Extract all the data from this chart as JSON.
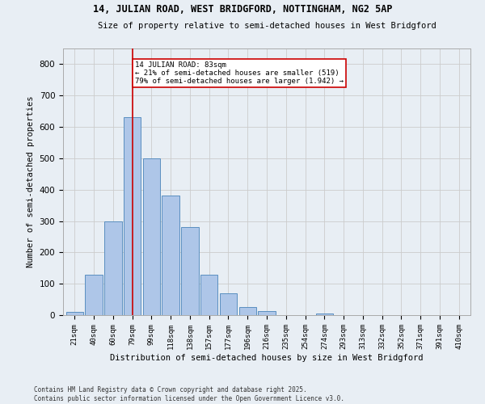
{
  "title1": "14, JULIAN ROAD, WEST BRIDGFORD, NOTTINGHAM, NG2 5AP",
  "title2": "Size of property relative to semi-detached houses in West Bridgford",
  "xlabel": "Distribution of semi-detached houses by size in West Bridgford",
  "ylabel": "Number of semi-detached properties",
  "categories": [
    "21sqm",
    "40sqm",
    "60sqm",
    "79sqm",
    "99sqm",
    "118sqm",
    "138sqm",
    "157sqm",
    "177sqm",
    "196sqm",
    "216sqm",
    "235sqm",
    "254sqm",
    "274sqm",
    "293sqm",
    "313sqm",
    "332sqm",
    "352sqm",
    "371sqm",
    "391sqm",
    "410sqm"
  ],
  "values": [
    10,
    130,
    300,
    630,
    500,
    380,
    280,
    130,
    70,
    25,
    12,
    0,
    0,
    5,
    0,
    0,
    0,
    0,
    0,
    0,
    0
  ],
  "bar_color": "#aec6e8",
  "bar_edge_color": "#5a8fc0",
  "property_size_label": "14 JULIAN ROAD: 83sqm",
  "pct_smaller": 21,
  "pct_larger": 79,
  "n_smaller": "519",
  "n_larger": "1.942",
  "vline_color": "#cc0000",
  "vline_x_index": 3,
  "annotation_box_color": "#cc0000",
  "ylim": [
    0,
    850
  ],
  "yticks": [
    0,
    100,
    200,
    300,
    400,
    500,
    600,
    700,
    800
  ],
  "grid_color": "#cccccc",
  "bg_color": "#e8eef4",
  "footer": "Contains HM Land Registry data © Crown copyright and database right 2025.\nContains public sector information licensed under the Open Government Licence v3.0."
}
